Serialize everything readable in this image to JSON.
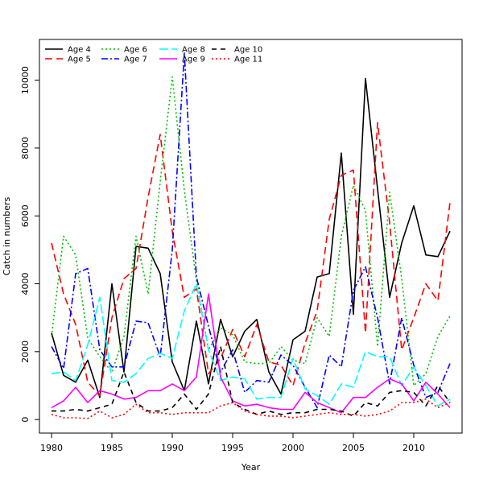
{
  "chart_data": {
    "type": "line",
    "title": "",
    "xlabel": "Year",
    "ylabel": "Catch in numbers",
    "xlim": [
      1979,
      2014
    ],
    "ylim": [
      -400,
      11200
    ],
    "x_ticks": [
      1980,
      1985,
      1990,
      1995,
      2000,
      2005,
      2010
    ],
    "y_ticks": [
      0,
      2000,
      4000,
      6000,
      8000,
      10000
    ],
    "legend_position": "top-left",
    "x": [
      1980,
      1981,
      1982,
      1983,
      1984,
      1985,
      1986,
      1987,
      1988,
      1989,
      1990,
      1991,
      1992,
      1993,
      1994,
      1995,
      1996,
      1997,
      1998,
      1999,
      2000,
      2001,
      2002,
      2003,
      2004,
      2005,
      2006,
      2007,
      2008,
      2009,
      2010,
      2011,
      2012,
      2013
    ],
    "series": [
      {
        "name": "Age 4",
        "color": "#000000",
        "dash": "",
        "values": [
          2550,
          1300,
          1100,
          1750,
          650,
          4000,
          1400,
          5100,
          5050,
          4300,
          1700,
          850,
          2900,
          1050,
          2950,
          1850,
          2600,
          2950,
          1400,
          750,
          2350,
          2600,
          4200,
          4300,
          7850,
          3100,
          10050,
          6800,
          3600,
          5200,
          6300,
          4850,
          4800,
          5550
        ]
      },
      {
        "name": "Age 5",
        "color": "#ff0000",
        "dash": "9,5",
        "values": [
          5200,
          3700,
          2800,
          1100,
          700,
          3000,
          4150,
          4450,
          6550,
          8400,
          5550,
          3600,
          3850,
          1350,
          1800,
          2650,
          1850,
          2800,
          1700,
          1600,
          1000,
          2250,
          3200,
          5900,
          7200,
          7350,
          2550,
          8750,
          5800,
          2050,
          3000,
          4000,
          3500,
          6400
        ]
      },
      {
        "name": "Age 6",
        "color": "#00c000",
        "dash": "2,3",
        "values": [
          2450,
          5400,
          4850,
          2400,
          1850,
          1400,
          2450,
          5400,
          3700,
          7000,
          10100,
          6750,
          4100,
          2050,
          2700,
          2500,
          1700,
          1650,
          1650,
          2150,
          1750,
          1650,
          3000,
          2450,
          5400,
          6900,
          6150,
          2150,
          6700,
          4150,
          1000,
          1350,
          2450,
          3050
        ]
      },
      {
        "name": "Age 7",
        "color": "#0000ff",
        "dash": "8,3,2,3",
        "values": [
          2150,
          1500,
          4300,
          4450,
          2050,
          1550,
          1550,
          2900,
          2850,
          1850,
          5000,
          10800,
          4200,
          2750,
          1400,
          2050,
          800,
          1150,
          1100,
          1900,
          1600,
          950,
          350,
          1900,
          1550,
          3800,
          4500,
          3000,
          1050,
          3000,
          1600,
          650,
          800,
          1650
        ]
      },
      {
        "name": "Age 8",
        "color": "#00ffff",
        "dash": "11,4",
        "values": [
          1350,
          1400,
          1150,
          2200,
          3600,
          1150,
          1100,
          1350,
          1800,
          1950,
          1800,
          3200,
          4000,
          2050,
          1150,
          1250,
          1200,
          600,
          650,
          650,
          1800,
          900,
          700,
          450,
          1050,
          950,
          2000,
          1850,
          1850,
          1000,
          1550,
          1000,
          400,
          600
        ]
      },
      {
        "name": "Age 9",
        "color": "#ff00ff",
        "dash": "",
        "values": [
          350,
          550,
          950,
          500,
          850,
          750,
          600,
          650,
          850,
          850,
          1050,
          850,
          1250,
          3700,
          1250,
          550,
          400,
          450,
          350,
          300,
          300,
          800,
          500,
          350,
          200,
          650,
          650,
          950,
          1200,
          1050,
          550,
          1100,
          750,
          350
        ]
      },
      {
        "name": "Age 10",
        "color": "#000000",
        "dash": "6,5",
        "values": [
          250,
          250,
          300,
          250,
          350,
          450,
          1400,
          500,
          250,
          250,
          350,
          750,
          300,
          750,
          2150,
          500,
          300,
          150,
          250,
          150,
          200,
          200,
          300,
          300,
          250,
          100,
          500,
          400,
          800,
          850,
          800,
          400,
          1000,
          500
        ]
      },
      {
        "name": "Age 11",
        "color": "#ff0000",
        "dash": "2,3",
        "values": [
          150,
          50,
          50,
          30,
          250,
          50,
          150,
          450,
          200,
          200,
          150,
          200,
          200,
          200,
          400,
          500,
          250,
          150,
          100,
          100,
          50,
          100,
          150,
          200,
          150,
          150,
          100,
          150,
          250,
          500,
          500,
          600,
          350,
          500
        ]
      }
    ]
  }
}
